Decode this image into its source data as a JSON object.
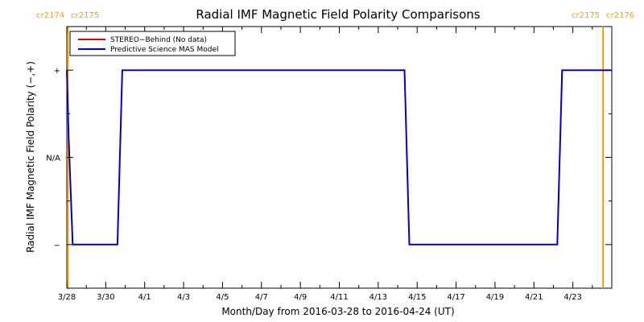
{
  "chart_data": {
    "type": "line",
    "title": "Radial IMF Magnetic Field Polarity Comparisons",
    "xlabel": "Month/Day from 2016-03-28 to 2016-04-24 (UT)",
    "ylabel": "Radial IMF Magnetic Field Polarity (−,+)",
    "xlim_days": [
      0,
      28
    ],
    "ylim": [
      -1.5,
      1.5
    ],
    "yticks": [
      {
        "value": 1,
        "label": "+"
      },
      {
        "value": 0,
        "label": "N/A"
      },
      {
        "value": -1,
        "label": "−"
      }
    ],
    "xticks": [
      {
        "day": 0,
        "label": "3/28"
      },
      {
        "day": 2,
        "label": "3/30"
      },
      {
        "day": 4,
        "label": "4/1"
      },
      {
        "day": 6,
        "label": "4/3"
      },
      {
        "day": 8,
        "label": "4/5"
      },
      {
        "day": 10,
        "label": "4/7"
      },
      {
        "day": 12,
        "label": "4/9"
      },
      {
        "day": 14,
        "label": "4/11"
      },
      {
        "day": 16,
        "label": "4/13"
      },
      {
        "day": 18,
        "label": "4/15"
      },
      {
        "day": 20,
        "label": "4/17"
      },
      {
        "day": 22,
        "label": "4/19"
      },
      {
        "day": 24,
        "label": "4/21"
      },
      {
        "day": 26,
        "label": "4/23"
      }
    ],
    "carrington_rotations": [
      {
        "day": 0.05,
        "left": "cr2174",
        "right": "cr2175"
      },
      {
        "day": 27.55,
        "left": "cr2175",
        "right": "cr2176"
      }
    ],
    "series": [
      {
        "name": "STEREO−Behind (No data)",
        "color": "#cc0000",
        "points": []
      },
      {
        "name": "Predictive Science MAS Model",
        "color": "#0000cc",
        "points": [
          [
            0.0,
            1
          ],
          [
            0.1,
            0.2
          ],
          [
            0.3,
            -1
          ],
          [
            2.6,
            -1
          ],
          [
            2.85,
            1
          ],
          [
            17.35,
            1
          ],
          [
            17.6,
            -1
          ],
          [
            25.2,
            -1
          ],
          [
            25.45,
            1
          ],
          [
            28.0,
            1
          ]
        ]
      }
    ],
    "legend_position": "top-left",
    "grid": false,
    "marker_color": "#ff9900"
  }
}
